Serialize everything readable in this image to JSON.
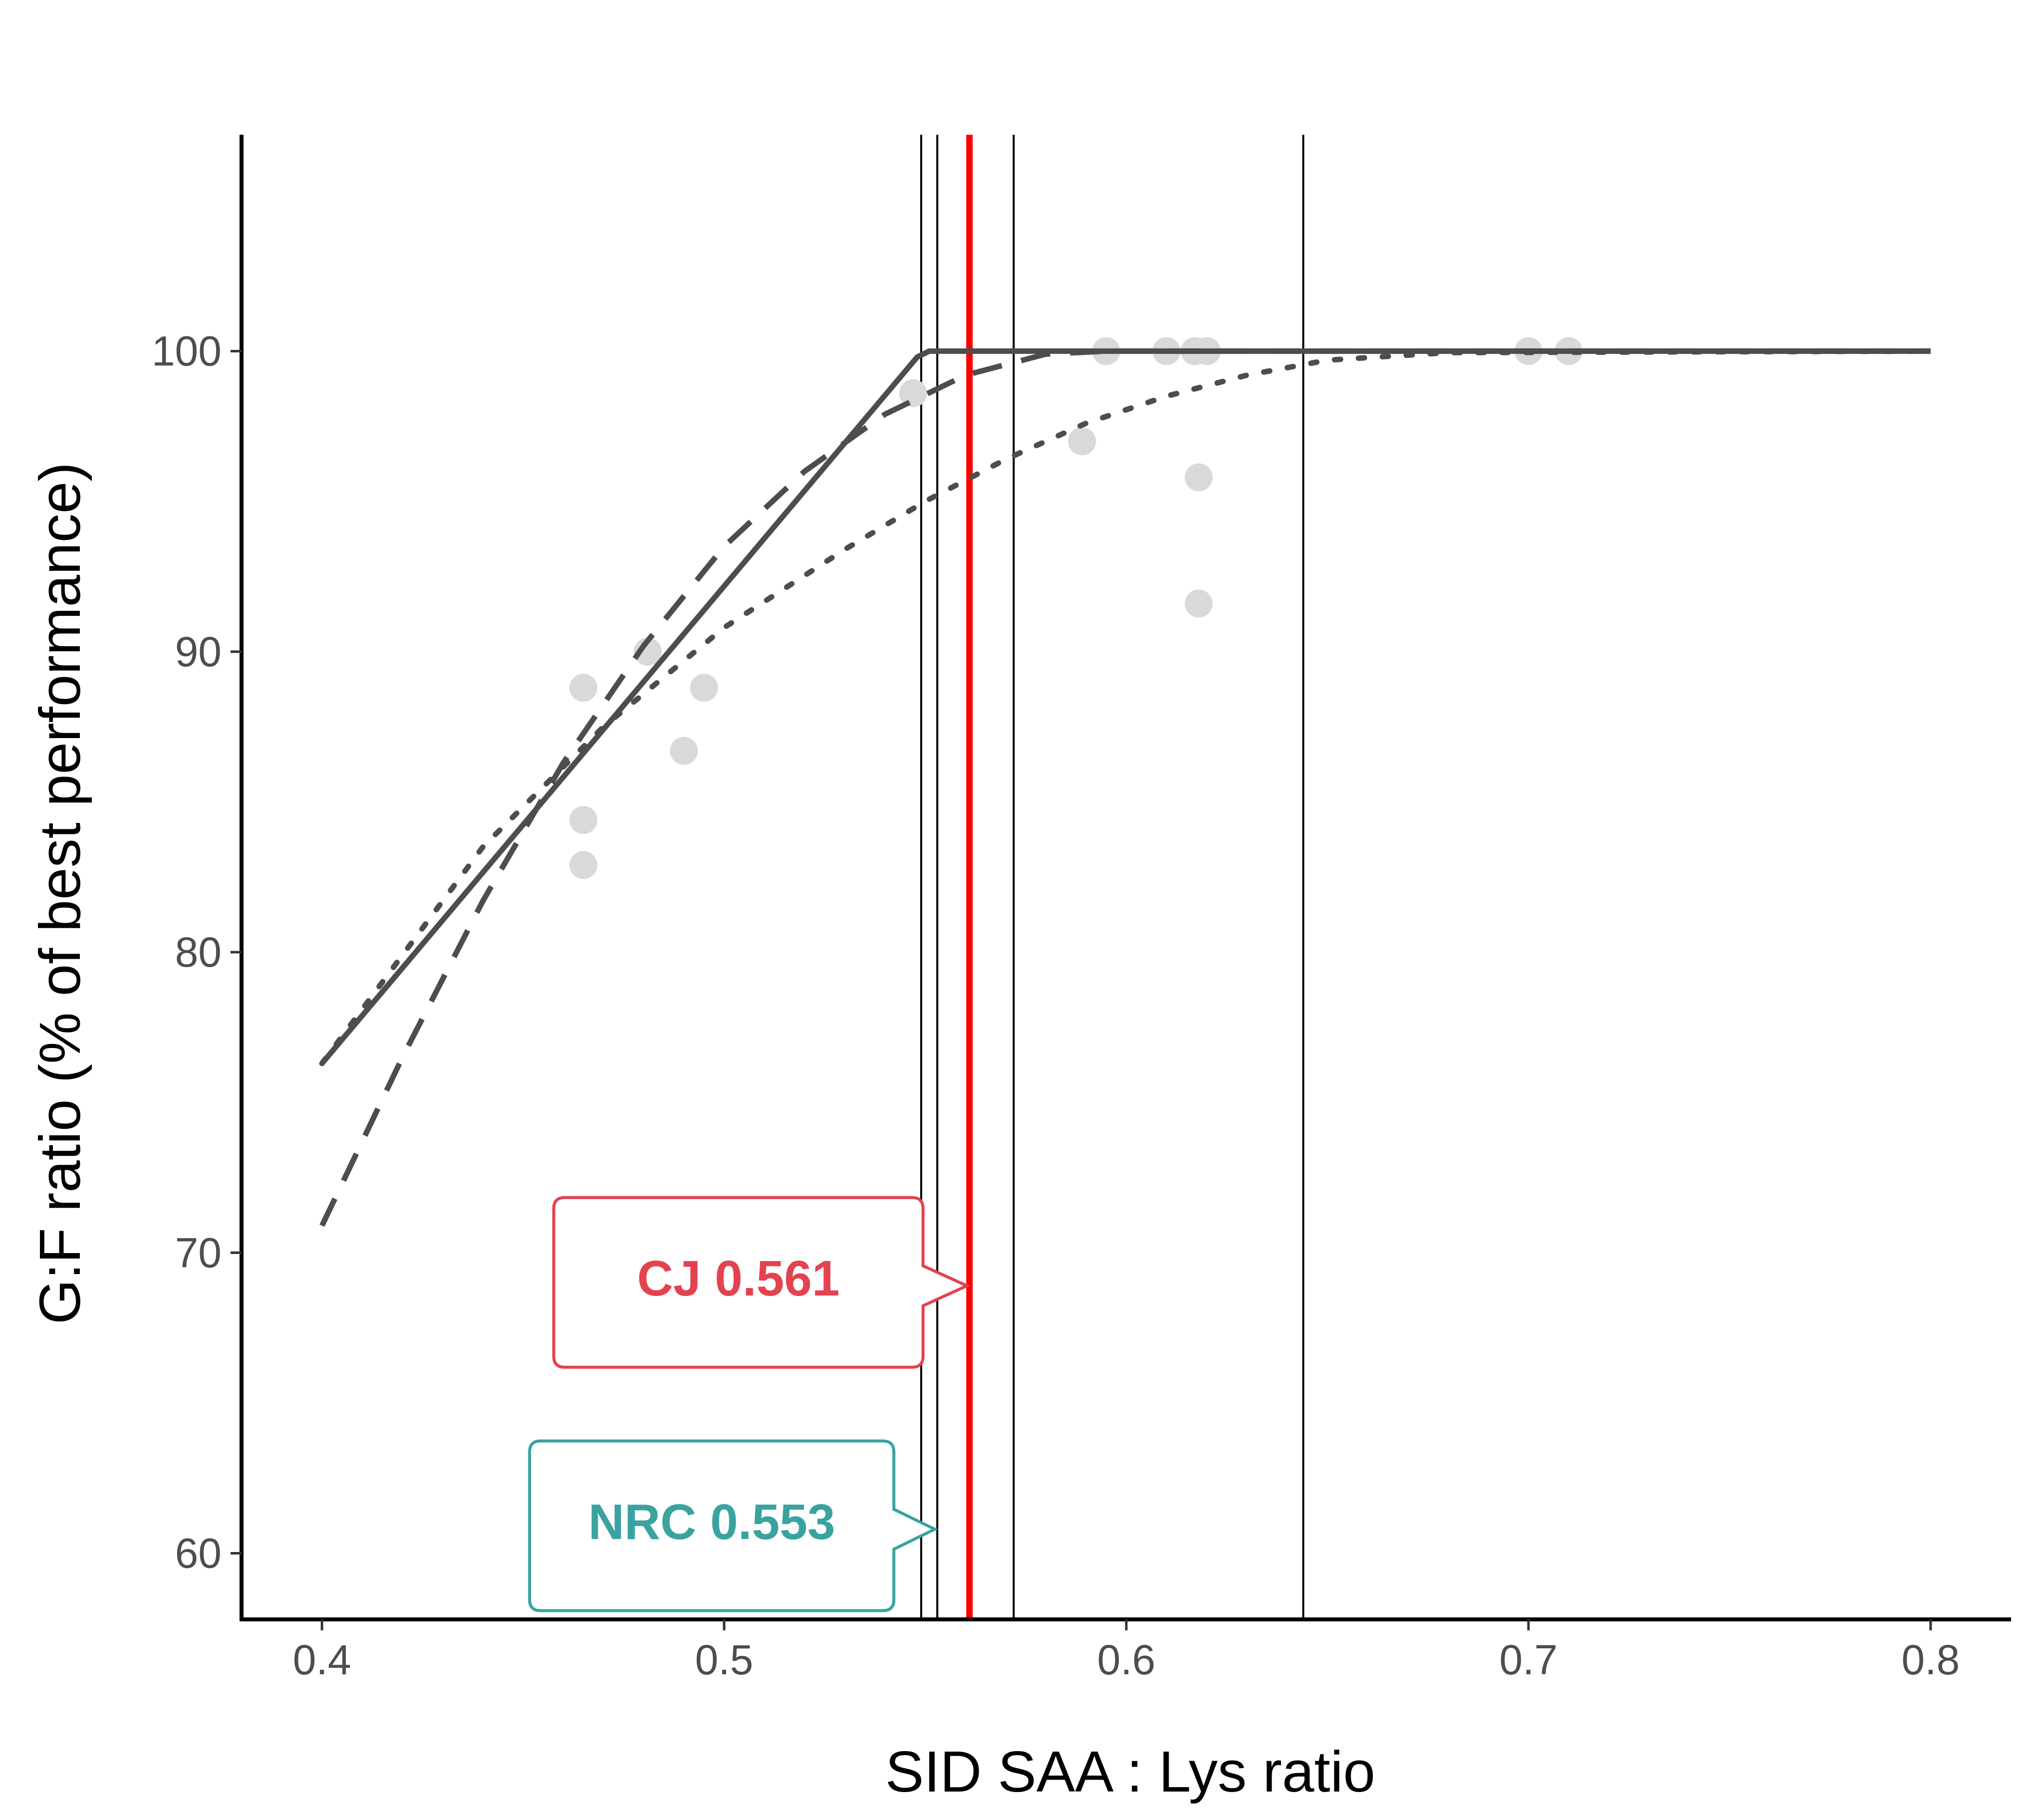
{
  "chart_data": {
    "type": "line",
    "title": "",
    "xlabel": "SID SAA : Lys ratio",
    "ylabel": "G:F ratio (% of best performance)",
    "xlim": [
      0.38,
      0.82
    ],
    "ylim": [
      57.8,
      107.2
    ],
    "x_ticks": [
      0.4,
      0.5,
      0.6,
      0.7,
      0.8
    ],
    "x_tick_labels": [
      "0.4",
      "0.5",
      "0.6",
      "0.7",
      "0.8"
    ],
    "y_ticks": [
      60,
      70,
      80,
      90,
      100
    ],
    "y_tick_labels": [
      "60",
      "70",
      "80",
      "90",
      "100"
    ],
    "grid": false,
    "points": {
      "color": "#d9d9d9",
      "x": [
        0.465,
        0.465,
        0.465,
        0.481,
        0.49,
        0.495,
        0.547,
        0.589,
        0.595,
        0.61,
        0.617,
        0.618,
        0.618,
        0.62,
        0.7,
        0.71
      ],
      "y": [
        88.8,
        84.4,
        82.9,
        90.0,
        86.7,
        88.8,
        98.6,
        97.0,
        100.0,
        100.0,
        100.0,
        95.8,
        91.6,
        100.0,
        100.0,
        100.0
      ]
    },
    "series": [
      {
        "style": "solid",
        "color": "#4d4d4d",
        "x": [
          0.4,
          0.548,
          0.551,
          0.8
        ],
        "y": [
          76.3,
          99.8,
          100.0,
          100.0
        ]
      },
      {
        "style": "dashed",
        "color": "#4d4d4d",
        "x": [
          0.4,
          0.42,
          0.44,
          0.46,
          0.48,
          0.5,
          0.52,
          0.54,
          0.56,
          0.58,
          0.595,
          0.8
        ],
        "y": [
          70.9,
          76.5,
          81.7,
          86.3,
          90.2,
          93.5,
          96.0,
          97.9,
          99.2,
          99.9,
          100.0,
          100.0
        ]
      },
      {
        "style": "dotted",
        "color": "#4d4d4d",
        "x": [
          0.4,
          0.44,
          0.47,
          0.5,
          0.53,
          0.55,
          0.57,
          0.59,
          0.61,
          0.63,
          0.65,
          0.68,
          0.8
        ],
        "y": [
          76.3,
          83.5,
          87.5,
          90.8,
          93.4,
          95.0,
          96.4,
          97.6,
          98.5,
          99.2,
          99.7,
          99.95,
          100.0
        ]
      }
    ],
    "vlines": [
      {
        "x": 0.549,
        "color": "#000000",
        "width": 4
      },
      {
        "x": 0.553,
        "color": "#000000",
        "width": 4
      },
      {
        "x": 0.561,
        "color": "#ff0000",
        "width": 13
      },
      {
        "x": 0.572,
        "color": "#000000",
        "width": 4
      },
      {
        "x": 0.644,
        "color": "#000000",
        "width": 4
      }
    ],
    "annotations": [
      {
        "text": "CJ 0.561",
        "color": "#e3424f",
        "x": 0.561,
        "y": 68.9
      },
      {
        "text": "NRC 0.553",
        "color": "#3aa39f",
        "x": 0.553,
        "y": 60.8
      }
    ]
  }
}
